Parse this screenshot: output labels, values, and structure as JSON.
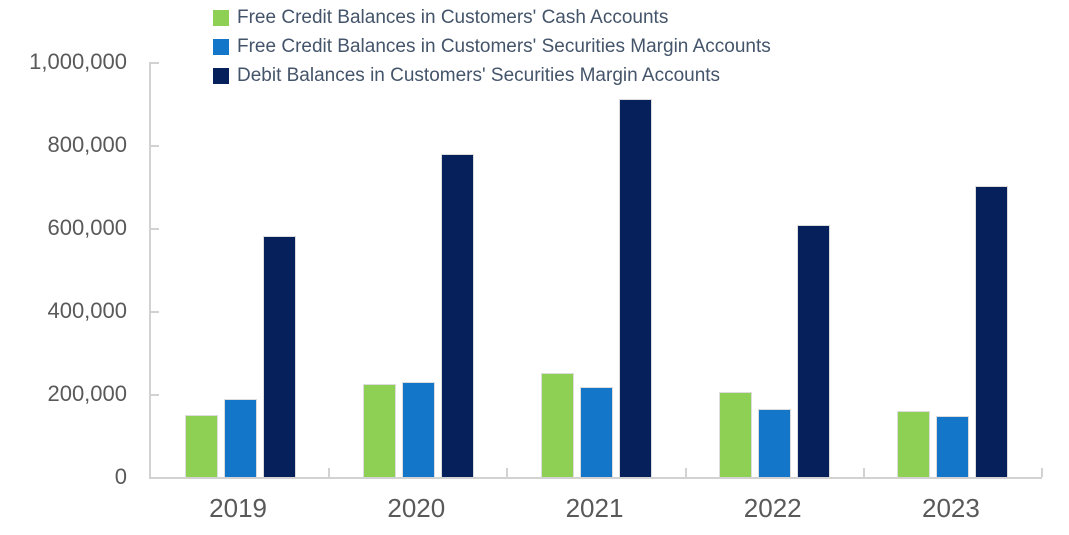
{
  "chart": {
    "background": "#FFFFFF",
    "axis_color": "#D2D2D2",
    "axis_text_color": "#595959",
    "legend_text_color": "#44546A"
  },
  "chart_data": {
    "type": "bar",
    "title": "",
    "categories": [
      "2019",
      "2020",
      "2021",
      "2022",
      "2023"
    ],
    "series": [
      {
        "key": "cash-free-credit",
        "name": "Free Credit Balances in Customers' Cash Accounts",
        "color": "#8ED053",
        "values": [
          150000,
          225000,
          250000,
          205000,
          160000
        ]
      },
      {
        "key": "margin-free-credit",
        "name": "Free Credit Balances in Customers' Securities Margin Accounts",
        "color": "#1476C8",
        "values": [
          187000,
          228000,
          216000,
          165000,
          148000
        ]
      },
      {
        "key": "margin-debit",
        "name": "Debit Balances in Customers' Securities Margin Accounts",
        "color": "#06205C",
        "values": [
          580000,
          778000,
          910000,
          607000,
          701000
        ]
      }
    ],
    "ylim": [
      0,
      1000000
    ],
    "y_tick_step": 200000,
    "y_tick_labels": [
      "0",
      "200,000",
      "400,000",
      "600,000",
      "800,000",
      "1,000,000"
    ],
    "grid": false,
    "legend_position": "top-left",
    "x_axis_boundary_ticks": true
  }
}
